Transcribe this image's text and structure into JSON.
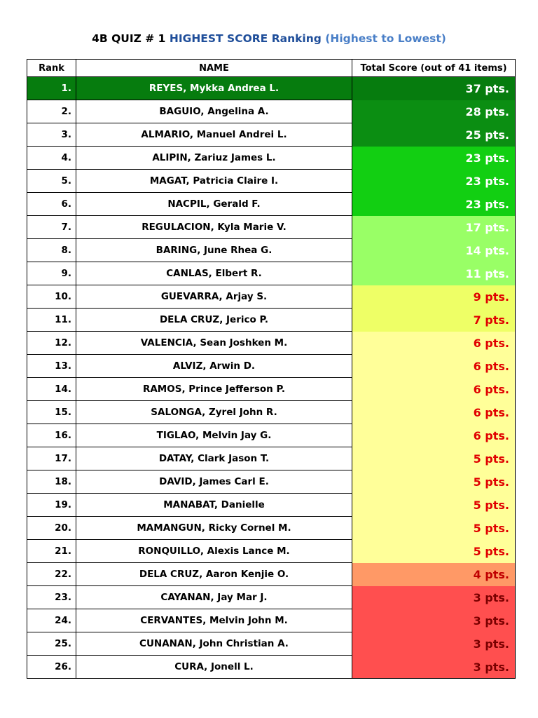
{
  "title": {
    "part1": "4B QUIZ # 1",
    "part2": "HIGHEST SCORE",
    "part3": "Ranking",
    "part4": "(Highest to Lowest)"
  },
  "headers": {
    "rank": "Rank",
    "name": "NAME",
    "score": "Total Score (out of 41 items)"
  },
  "rows": [
    {
      "rank": "1.",
      "name": "REYES, Mykka Andrea L.",
      "score": "37 pts."
    },
    {
      "rank": "2.",
      "name": "BAGUIO, Angelina A.",
      "score": "28 pts."
    },
    {
      "rank": "3.",
      "name": "ALMARIO, Manuel Andrei L.",
      "score": "25 pts."
    },
    {
      "rank": "4.",
      "name": "ALIPIN, Zariuz James L.",
      "score": "23 pts."
    },
    {
      "rank": "5.",
      "name": "MAGAT, Patricia Claire I.",
      "score": "23 pts."
    },
    {
      "rank": "6.",
      "name": "NACPIL, Gerald F.",
      "score": "23 pts."
    },
    {
      "rank": "7.",
      "name": "REGULACION, Kyla Marie V.",
      "score": "17 pts."
    },
    {
      "rank": "8.",
      "name": "BARING, June Rhea G.",
      "score": "14 pts."
    },
    {
      "rank": "9.",
      "name": "CANLAS, Elbert R.",
      "score": "11 pts."
    },
    {
      "rank": "10.",
      "name": "GUEVARRA, Arjay S.",
      "score": "9 pts."
    },
    {
      "rank": "11.",
      "name": "DELA CRUZ, Jerico P.",
      "score": "7 pts."
    },
    {
      "rank": "12.",
      "name": "VALENCIA, Sean Joshken M.",
      "score": "6 pts."
    },
    {
      "rank": "13.",
      "name": "ALVIZ, Arwin D.",
      "score": "6 pts."
    },
    {
      "rank": "14.",
      "name": "RAMOS, Prince Jefferson P.",
      "score": "6 pts."
    },
    {
      "rank": "15.",
      "name": "SALONGA, Zyrel John R.",
      "score": "6 pts."
    },
    {
      "rank": "16.",
      "name": "TIGLAO, Melvin Jay G.",
      "score": "6 pts."
    },
    {
      "rank": "17.",
      "name": "DATAY, Clark Jason T.",
      "score": "5 pts."
    },
    {
      "rank": "18.",
      "name": "DAVID, James Carl E.",
      "score": "5 pts."
    },
    {
      "rank": "19.",
      "name": "MANABAT, Danielle",
      "score": "5 pts."
    },
    {
      "rank": "20.",
      "name": "MAMANGUN, Ricky Cornel M.",
      "score": "5 pts."
    },
    {
      "rank": "21.",
      "name": "RONQUILLO, Alexis Lance M.",
      "score": "5 pts."
    },
    {
      "rank": "22.",
      "name": "DELA CRUZ, Aaron Kenjie O.",
      "score": "4 pts."
    },
    {
      "rank": "23.",
      "name": "CAYANAN, Jay Mar J.",
      "score": "3 pts."
    },
    {
      "rank": "24.",
      "name": "CERVANTES, Melvin John M.",
      "score": "3 pts."
    },
    {
      "rank": "25.",
      "name": "CUNANAN, John Christian A.",
      "score": "3 pts."
    },
    {
      "rank": "26.",
      "name": "CURA, Jonell L.",
      "score": "3 pts."
    }
  ],
  "colors": {
    "first_row_bg": "#067c0e",
    "dark_green": "#0b8e12",
    "mid_green": "#12cf12",
    "light_green": "#99ff66",
    "yellow_green": "#eeff66",
    "light_yellow": "#ffff99",
    "orange": "#ff9966",
    "red": "#ff4f4f",
    "title_blue": "#1f4e9a",
    "title_light_blue": "#4a7fc7"
  }
}
